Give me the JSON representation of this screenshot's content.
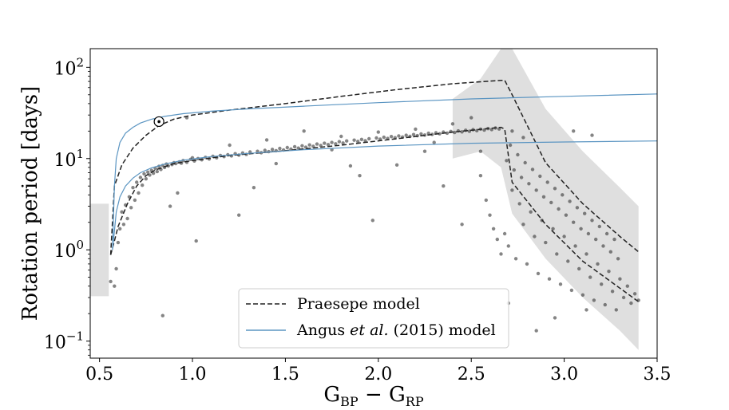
{
  "chart_data": {
    "type": "scatter",
    "xlabel": "G_BP − G_RP",
    "ylabel": "Rotation period [days]",
    "xlim": [
      0.45,
      3.5
    ],
    "ylim": [
      0.065,
      160
    ],
    "yscale": "log",
    "x_ticks": [
      0.5,
      1.0,
      1.5,
      2.0,
      2.5,
      3.0,
      3.5
    ],
    "x_tick_labels": [
      "0.5",
      "1.0",
      "1.5",
      "2.0",
      "2.5",
      "3.0",
      "3.5"
    ],
    "y_ticks": [
      0.1,
      1,
      10,
      100
    ],
    "y_tick_labels": [
      {
        "base": "10",
        "exp": "−1"
      },
      {
        "base": "10",
        "exp": "0"
      },
      {
        "base": "10",
        "exp": "1"
      },
      {
        "base": "10",
        "exp": "2"
      }
    ],
    "series": [
      {
        "name": "Praesepe model",
        "style": "dashed",
        "color": "#222222",
        "curves": [
          {
            "x": [
              0.56,
              0.58,
              0.62,
              0.68,
              0.75,
              0.82,
              0.9,
              1.0,
              1.2,
              1.5,
              1.8,
              2.1,
              2.4,
              2.66,
              2.68,
              2.72,
              2.9,
              3.1,
              3.3,
              3.4
            ],
            "y": [
              0.88,
              5,
              8.5,
              13,
              18,
              23,
              27,
              30,
              34,
              40,
              48,
              57,
              66,
              72,
              72,
              50,
              9,
              3.2,
              1.4,
              0.95
            ]
          },
          {
            "x": [
              0.56,
              0.58,
              0.6,
              0.65,
              0.7,
              0.75,
              0.8,
              0.9,
              1.0,
              1.2,
              1.5,
              1.8,
              2.1,
              2.4,
              2.66,
              2.68,
              2.72,
              2.9,
              3.1,
              3.3,
              3.4
            ],
            "y": [
              0.88,
              1.25,
              1.8,
              3.2,
              5,
              6.5,
              7.5,
              8.8,
              9.5,
              10.8,
              12.2,
              14,
              16.5,
              19.5,
              22,
              21,
              5.5,
              1.9,
              0.75,
              0.38,
              0.27
            ]
          }
        ]
      },
      {
        "name": "Angus et al. (2015) model",
        "style": "solid",
        "color": "#5b95c2",
        "curves": [
          {
            "x": [
              0.57,
              0.58,
              0.59,
              0.61,
              0.64,
              0.68,
              0.72,
              0.78,
              0.85,
              0.95,
              1.1,
              1.3,
              1.6,
              2.0,
              2.5,
              3.0,
              3.5
            ],
            "y": [
              1.0,
              5,
              10,
              15,
              19,
              22,
              24.5,
              27,
              29,
              31,
              33,
              35,
              37.5,
              41,
              45,
              48,
              51
            ]
          },
          {
            "x": [
              0.57,
              0.58,
              0.59,
              0.61,
              0.64,
              0.68,
              0.72,
              0.78,
              0.85,
              0.95,
              1.1,
              1.3,
              1.6,
              2.0,
              2.5,
              3.0,
              3.5
            ],
            "y": [
              1.0,
              1.6,
              2.6,
              3.8,
              5,
              6.1,
              7,
              7.9,
              8.7,
              9.6,
              10.5,
              11.4,
              12.5,
              13.7,
              14.7,
              15.2,
              15.6
            ]
          }
        ]
      }
    ],
    "reference_point": {
      "name": "Sun",
      "x": 0.82,
      "y": 25.4
    },
    "bands": [
      {
        "x": [
          0.45,
          0.55,
          0.55,
          0.45
        ],
        "y": [
          0.31,
          0.31,
          3.2,
          3.2
        ]
      },
      {
        "x": [
          2.4,
          2.55,
          2.66,
          2.72,
          2.9,
          3.1,
          3.3,
          3.4,
          3.4,
          3.3,
          3.1,
          2.9,
          2.72,
          2.66,
          2.55,
          2.4
        ],
        "y": [
          45,
          75,
          160,
          160,
          35,
          12,
          4.8,
          3.0,
          0.08,
          0.13,
          0.3,
          0.8,
          2.5,
          8,
          12,
          10
        ]
      }
    ],
    "scatter_points": [
      [
        0.56,
        0.45
      ],
      [
        0.58,
        0.4
      ],
      [
        0.59,
        0.62
      ],
      [
        0.6,
        1.2
      ],
      [
        0.61,
        1.7
      ],
      [
        0.62,
        2.6
      ],
      [
        0.63,
        1.9
      ],
      [
        0.64,
        3.1
      ],
      [
        0.65,
        2.2
      ],
      [
        0.66,
        3.8
      ],
      [
        0.67,
        2.9
      ],
      [
        0.68,
        4.8
      ],
      [
        0.69,
        3.5
      ],
      [
        0.7,
        5.5
      ],
      [
        0.71,
        4.2
      ],
      [
        0.72,
        6.2
      ],
      [
        0.73,
        5.1
      ],
      [
        0.74,
        6.8
      ],
      [
        0.75,
        6.0
      ],
      [
        0.76,
        7.1
      ],
      [
        0.77,
        6.6
      ],
      [
        0.78,
        7.4
      ],
      [
        0.79,
        6.9
      ],
      [
        0.8,
        7.8
      ],
      [
        0.81,
        7.2
      ],
      [
        0.82,
        8.2
      ],
      [
        0.83,
        7.6
      ],
      [
        0.84,
        8.4
      ],
      [
        0.85,
        8.0
      ],
      [
        0.86,
        8.7
      ],
      [
        0.87,
        8.3
      ],
      [
        0.88,
        3.0
      ],
      [
        0.89,
        8.6
      ],
      [
        0.9,
        9.0
      ],
      [
        0.91,
        8.8
      ],
      [
        0.92,
        4.2
      ],
      [
        0.93,
        9.2
      ],
      [
        0.94,
        8.9
      ],
      [
        0.95,
        9.5
      ],
      [
        0.97,
        9.1
      ],
      [
        0.99,
        9.8
      ],
      [
        1.01,
        9.4
      ],
      [
        1.02,
        1.25
      ],
      [
        1.03,
        10.0
      ],
      [
        1.05,
        9.7
      ],
      [
        1.07,
        10.3
      ],
      [
        1.09,
        9.9
      ],
      [
        1.11,
        10.6
      ],
      [
        1.13,
        10.2
      ],
      [
        1.15,
        10.8
      ],
      [
        1.17,
        10.5
      ],
      [
        1.19,
        11.0
      ],
      [
        1.21,
        10.7
      ],
      [
        1.23,
        11.3
      ],
      [
        1.25,
        10.9
      ],
      [
        1.27,
        11.5
      ],
      [
        1.29,
        11.1
      ],
      [
        1.31,
        11.8
      ],
      [
        1.33,
        4.8
      ],
      [
        1.35,
        12.0
      ],
      [
        1.37,
        11.6
      ],
      [
        1.39,
        12.3
      ],
      [
        1.41,
        11.9
      ],
      [
        1.43,
        12.6
      ],
      [
        1.45,
        12.2
      ],
      [
        1.47,
        12.9
      ],
      [
        1.49,
        12.4
      ],
      [
        1.51,
        13.2
      ],
      [
        1.53,
        12.7
      ],
      [
        1.55,
        13.5
      ],
      [
        1.57,
        13.0
      ],
      [
        1.59,
        13.8
      ],
      [
        1.61,
        13.3
      ],
      [
        1.63,
        14.1
      ],
      [
        1.65,
        13.6
      ],
      [
        1.67,
        14.4
      ],
      [
        1.69,
        13.9
      ],
      [
        1.71,
        14.7
      ],
      [
        1.73,
        14.2
      ],
      [
        1.75,
        15.0
      ],
      [
        1.77,
        14.5
      ],
      [
        1.79,
        15.3
      ],
      [
        1.81,
        14.8
      ],
      [
        1.83,
        15.6
      ],
      [
        1.85,
        8.3
      ],
      [
        1.87,
        15.9
      ],
      [
        1.89,
        15.4
      ],
      [
        1.91,
        16.2
      ],
      [
        1.93,
        15.7
      ],
      [
        1.95,
        16.5
      ],
      [
        1.97,
        2.1
      ],
      [
        1.99,
        16.8
      ],
      [
        2.01,
        16.3
      ],
      [
        2.03,
        17.1
      ],
      [
        2.05,
        16.6
      ],
      [
        2.07,
        17.4
      ],
      [
        2.09,
        16.9
      ],
      [
        2.11,
        17.7
      ],
      [
        2.13,
        17.2
      ],
      [
        2.15,
        18.0
      ],
      [
        2.17,
        17.5
      ],
      [
        2.19,
        18.3
      ],
      [
        2.21,
        17.8
      ],
      [
        2.23,
        18.6
      ],
      [
        2.25,
        18.1
      ],
      [
        2.27,
        18.9
      ],
      [
        2.29,
        18.4
      ],
      [
        2.31,
        19.2
      ],
      [
        2.33,
        18.7
      ],
      [
        2.35,
        19.5
      ],
      [
        2.37,
        19.0
      ],
      [
        2.39,
        19.8
      ],
      [
        2.41,
        19.3
      ],
      [
        2.43,
        20.1
      ],
      [
        2.45,
        19.6
      ],
      [
        2.47,
        20.4
      ],
      [
        2.49,
        19.9
      ],
      [
        2.51,
        20.7
      ],
      [
        2.53,
        20.2
      ],
      [
        2.55,
        21.0
      ],
      [
        2.57,
        20.5
      ],
      [
        2.59,
        21.3
      ],
      [
        2.61,
        20.8
      ],
      [
        2.63,
        21.6
      ],
      [
        2.65,
        21.1
      ],
      [
        2.5,
        28
      ],
      [
        2.55,
        12
      ],
      [
        2.58,
        3.5
      ],
      [
        2.6,
        2.4
      ],
      [
        2.62,
        1.7
      ],
      [
        2.64,
        1.3
      ],
      [
        2.66,
        0.9
      ],
      [
        2.68,
        1.5
      ],
      [
        2.7,
        1.1
      ],
      [
        2.72,
        4.5
      ],
      [
        2.74,
        0.8
      ],
      [
        2.76,
        3.2
      ],
      [
        2.78,
        1.9
      ],
      [
        2.8,
        0.7
      ],
      [
        2.82,
        2.6
      ],
      [
        2.84,
        1.4
      ],
      [
        2.86,
        0.55
      ],
      [
        2.88,
        2.1
      ],
      [
        2.9,
        1.2
      ],
      [
        2.92,
        0.48
      ],
      [
        2.94,
        1.7
      ],
      [
        2.96,
        0.9
      ],
      [
        2.98,
        0.42
      ],
      [
        3.0,
        1.4
      ],
      [
        3.02,
        0.75
      ],
      [
        3.04,
        0.36
      ],
      [
        3.06,
        1.1
      ],
      [
        3.08,
        0.62
      ],
      [
        3.1,
        0.32
      ],
      [
        3.12,
        0.9
      ],
      [
        3.14,
        0.5
      ],
      [
        3.16,
        0.28
      ],
      [
        3.18,
        0.7
      ],
      [
        3.2,
        0.42
      ],
      [
        3.22,
        0.25
      ],
      [
        3.24,
        0.58
      ],
      [
        3.26,
        0.35
      ],
      [
        3.28,
        0.22
      ],
      [
        3.3,
        0.48
      ],
      [
        3.32,
        0.3
      ],
      [
        3.34,
        0.4
      ],
      [
        3.36,
        0.26
      ],
      [
        3.38,
        0.33
      ],
      [
        3.4,
        0.28
      ],
      [
        2.69,
        9.5
      ],
      [
        2.71,
        14
      ],
      [
        2.73,
        7.5
      ],
      [
        2.75,
        11
      ],
      [
        2.77,
        6.2
      ],
      [
        2.79,
        9
      ],
      [
        2.81,
        5.3
      ],
      [
        2.83,
        7.6
      ],
      [
        2.85,
        4.5
      ],
      [
        2.87,
        6.4
      ],
      [
        2.89,
        3.8
      ],
      [
        2.91,
        5.5
      ],
      [
        2.93,
        3.3
      ],
      [
        2.95,
        4.7
      ],
      [
        2.97,
        2.8
      ],
      [
        2.99,
        4.0
      ],
      [
        3.01,
        2.4
      ],
      [
        3.03,
        3.4
      ],
      [
        3.05,
        2.0
      ],
      [
        3.07,
        2.9
      ],
      [
        3.09,
        1.7
      ],
      [
        3.11,
        2.5
      ],
      [
        3.13,
        1.5
      ],
      [
        3.15,
        2.1
      ],
      [
        3.17,
        1.3
      ],
      [
        3.19,
        1.8
      ],
      [
        3.21,
        1.1
      ],
      [
        3.23,
        1.5
      ],
      [
        3.25,
        0.95
      ],
      [
        3.27,
        1.3
      ],
      [
        3.29,
        0.8
      ],
      [
        2.72,
        20
      ],
      [
        2.78,
        17
      ],
      [
        2.85,
        0.13
      ],
      [
        2.95,
        0.18
      ],
      [
        3.12,
        0.22
      ],
      [
        0.84,
        0.19
      ],
      [
        1.0,
        10.2
      ],
      [
        0.97,
        28
      ],
      [
        1.2,
        14
      ],
      [
        1.4,
        16
      ],
      [
        1.6,
        20
      ],
      [
        1.8,
        17.5
      ],
      [
        2.0,
        19.5
      ],
      [
        2.2,
        21
      ],
      [
        2.4,
        24
      ],
      [
        2.3,
        15
      ],
      [
        2.1,
        8.5
      ],
      [
        1.9,
        6.5
      ],
      [
        2.35,
        5
      ],
      [
        2.45,
        1.9
      ],
      [
        1.25,
        2.4
      ],
      [
        1.45,
        8.8
      ],
      [
        1.75,
        12.5
      ],
      [
        2.25,
        12
      ],
      [
        2.55,
        6.5
      ],
      [
        3.15,
        18
      ],
      [
        3.05,
        20
      ],
      [
        2.7,
        0.26
      ]
    ]
  },
  "legend": {
    "entries": [
      {
        "label": "Praesepe model"
      },
      {
        "label_parts": [
          "Angus ",
          "et al.",
          " (2015) model"
        ]
      }
    ]
  }
}
